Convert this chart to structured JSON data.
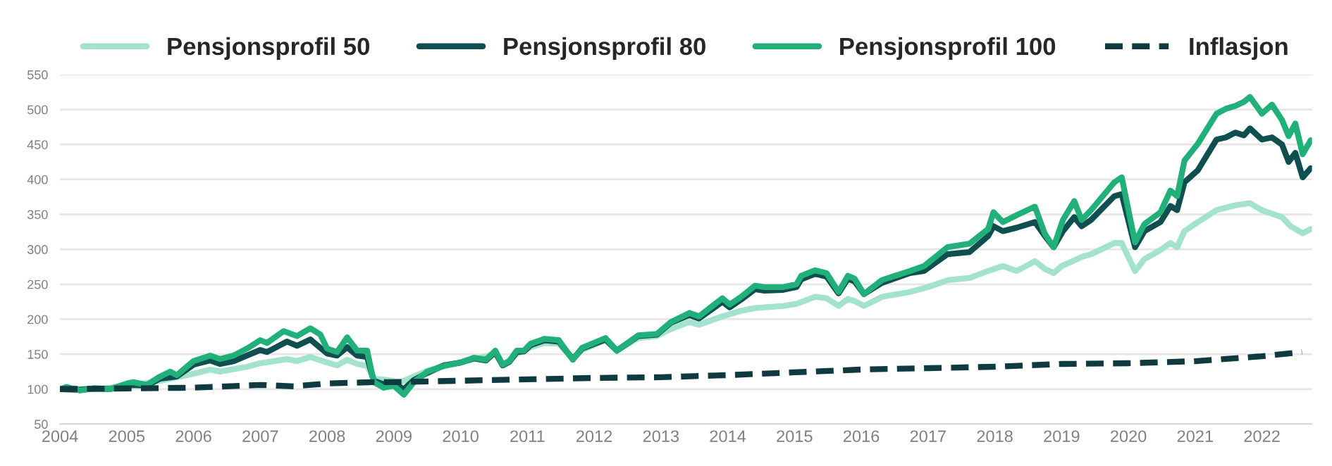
{
  "chart_data": {
    "type": "line",
    "xlim": [
      2004,
      2022.75
    ],
    "xticks": [
      2004,
      2005,
      2006,
      2007,
      2008,
      2009,
      2010,
      2011,
      2012,
      2013,
      2014,
      2015,
      2016,
      2017,
      2018,
      2019,
      2020,
      2021,
      2022
    ],
    "ylim": [
      50,
      550
    ],
    "yticks": [
      50,
      100,
      150,
      200,
      250,
      300,
      350,
      400,
      450,
      500,
      550
    ],
    "grid": "y",
    "legend": "top",
    "line_style": "solid",
    "marker": "none",
    "series": [
      {
        "name": "Pensjonsprofil 50",
        "color": "#a3e2cc",
        "x": [
          2004.0,
          2004.5,
          2005.0,
          2005.5,
          2006.0,
          2006.25,
          2006.4,
          2006.8,
          2007.0,
          2007.4,
          2007.55,
          2007.75,
          2008.0,
          2008.15,
          2008.3,
          2008.45,
          2008.6,
          2008.7,
          2008.9,
          2009.1,
          2009.3,
          2009.5,
          2009.75,
          2010.0,
          2010.2,
          2010.52,
          2010.63,
          2010.84,
          2011.05,
          2011.26,
          2011.47,
          2011.68,
          2011.82,
          2012.17,
          2012.34,
          2012.66,
          2012.94,
          2013.15,
          2013.43,
          2013.57,
          2013.92,
          2014.2,
          2014.41,
          2014.83,
          2015.03,
          2015.31,
          2015.48,
          2015.66,
          2015.8,
          2015.9,
          2016.04,
          2016.31,
          2016.73,
          2017.0,
          2017.3,
          2017.62,
          2017.9,
          2018.12,
          2018.33,
          2018.6,
          2018.75,
          2018.88,
          2019.0,
          2019.3,
          2019.44,
          2019.79,
          2019.9,
          2020.1,
          2020.24,
          2020.48,
          2020.63,
          2020.73,
          2020.84,
          2021.04,
          2021.32,
          2021.6,
          2021.82,
          2022.0,
          2022.3,
          2022.43,
          2022.61,
          2022.73
        ],
        "values": [
          100,
          100,
          104,
          112,
          122,
          128,
          125,
          132,
          137,
          143,
          140,
          146,
          138,
          134,
          142,
          136,
          133,
          115,
          113,
          110,
          118,
          126,
          134,
          138,
          143,
          150,
          134,
          150,
          160,
          166,
          165,
          143,
          156,
          170,
          155,
          173,
          176,
          186,
          196,
          192,
          204,
          212,
          216,
          219,
          222,
          232,
          230,
          219,
          229,
          226,
          219,
          232,
          239,
          246,
          256,
          259,
          269,
          276,
          269,
          283,
          272,
          266,
          276,
          289,
          293,
          309,
          309,
          269,
          286,
          299,
          309,
          303,
          326,
          339,
          356,
          363,
          366,
          356,
          346,
          333,
          323,
          329
        ]
      },
      {
        "name": "Pensjonsprofil 80",
        "color": "#0f4f4f",
        "x": [
          2004.0,
          2004.3,
          2004.5,
          2004.75,
          2005.0,
          2005.3,
          2005.5,
          2005.75,
          2006.0,
          2006.25,
          2006.4,
          2006.6,
          2006.8,
          2007.0,
          2007.1,
          2007.4,
          2007.55,
          2007.75,
          2008.0,
          2008.15,
          2008.3,
          2008.45,
          2008.6,
          2008.7,
          2008.85,
          2009.0,
          2009.15,
          2009.3,
          2009.5,
          2009.75,
          2010.0,
          2010.2,
          2010.38,
          2010.52,
          2010.63,
          2010.73,
          2010.84,
          2010.95,
          2011.05,
          2011.26,
          2011.47,
          2011.68,
          2011.82,
          2012.17,
          2012.34,
          2012.66,
          2012.94,
          2013.15,
          2013.43,
          2013.57,
          2013.92,
          2014.03,
          2014.2,
          2014.41,
          2014.55,
          2014.83,
          2015.03,
          2015.1,
          2015.31,
          2015.48,
          2015.66,
          2015.8,
          2015.9,
          2016.04,
          2016.31,
          2016.73,
          2016.94,
          2017.29,
          2017.62,
          2017.9,
          2017.98,
          2018.12,
          2018.33,
          2018.6,
          2018.75,
          2018.88,
          2019.02,
          2019.19,
          2019.3,
          2019.44,
          2019.79,
          2019.9,
          2020.1,
          2020.24,
          2020.48,
          2020.63,
          2020.73,
          2020.84,
          2021.04,
          2021.32,
          2021.46,
          2021.6,
          2021.73,
          2021.82,
          2022.0,
          2022.15,
          2022.3,
          2022.4,
          2022.5,
          2022.61,
          2022.73
        ],
        "values": [
          100,
          99,
          101,
          100,
          106,
          105,
          115,
          118,
          135,
          141,
          136,
          140,
          148,
          156,
          153,
          168,
          162,
          171,
          151,
          148,
          160,
          148,
          146,
          112,
          107,
          108,
          100,
          113,
          123,
          134,
          138,
          144,
          141,
          153,
          134,
          139,
          153,
          154,
          163,
          170,
          168,
          143,
          158,
          171,
          155,
          176,
          178,
          195,
          206,
          201,
          225,
          217,
          228,
          243,
          241,
          242,
          246,
          257,
          265,
          261,
          237,
          258,
          254,
          236,
          252,
          266,
          269,
          293,
          296,
          319,
          333,
          326,
          331,
          339,
          319,
          303,
          326,
          346,
          333,
          342,
          376,
          379,
          303,
          326,
          339,
          362,
          356,
          396,
          413,
          457,
          460,
          467,
          463,
          473,
          457,
          460,
          450,
          425,
          438,
          403,
          416
        ]
      },
      {
        "name": "Pensjonsprofil 100",
        "color": "#22b07a",
        "x": [
          2004.0,
          2004.1,
          2004.3,
          2004.5,
          2004.75,
          2005.0,
          2005.1,
          2005.3,
          2005.5,
          2005.65,
          2005.75,
          2006.0,
          2006.25,
          2006.4,
          2006.6,
          2006.8,
          2007.0,
          2007.1,
          2007.35,
          2007.55,
          2007.75,
          2007.9,
          2008.0,
          2008.15,
          2008.3,
          2008.45,
          2008.6,
          2008.7,
          2008.85,
          2009.0,
          2009.15,
          2009.3,
          2009.5,
          2009.75,
          2010.0,
          2010.2,
          2010.38,
          2010.52,
          2010.63,
          2010.73,
          2010.84,
          2010.95,
          2011.05,
          2011.26,
          2011.47,
          2011.68,
          2011.82,
          2012.17,
          2012.34,
          2012.66,
          2012.94,
          2013.15,
          2013.43,
          2013.57,
          2013.92,
          2014.03,
          2014.2,
          2014.41,
          2014.55,
          2014.83,
          2015.03,
          2015.1,
          2015.31,
          2015.48,
          2015.66,
          2015.8,
          2015.9,
          2016.04,
          2016.31,
          2016.73,
          2016.94,
          2017.29,
          2017.62,
          2017.9,
          2017.98,
          2018.12,
          2018.33,
          2018.6,
          2018.75,
          2018.88,
          2019.02,
          2019.19,
          2019.3,
          2019.44,
          2019.79,
          2019.9,
          2020.1,
          2020.24,
          2020.48,
          2020.63,
          2020.73,
          2020.84,
          2021.04,
          2021.32,
          2021.46,
          2021.6,
          2021.73,
          2021.82,
          2022.0,
          2022.15,
          2022.3,
          2022.4,
          2022.5,
          2022.61,
          2022.73
        ],
        "values": [
          100,
          103,
          98,
          101,
          100,
          108,
          110,
          106,
          118,
          125,
          120,
          140,
          148,
          143,
          148,
          158,
          170,
          166,
          183,
          176,
          187,
          178,
          158,
          153,
          174,
          155,
          155,
          110,
          102,
          105,
          92,
          110,
          125,
          133,
          138,
          145,
          142,
          155,
          135,
          140,
          155,
          155,
          165,
          172,
          170,
          142,
          159,
          173,
          155,
          177,
          179,
          196,
          209,
          204,
          230,
          221,
          232,
          248,
          246,
          246,
          250,
          262,
          270,
          266,
          239,
          262,
          258,
          236,
          256,
          269,
          276,
          303,
          308,
          329,
          353,
          339,
          349,
          361,
          322,
          303,
          342,
          369,
          342,
          356,
          396,
          403,
          310,
          336,
          353,
          384,
          376,
          427,
          451,
          494,
          501,
          505,
          511,
          518,
          494,
          507,
          485,
          462,
          480,
          436,
          456
        ]
      },
      {
        "name": "Inflasjon",
        "color": "#0e3a40",
        "line_style": "dashed",
        "x": [
          2004.0,
          2005.0,
          2006.0,
          2007.0,
          2007.5,
          2008.0,
          2008.7,
          2009.0,
          2010.0,
          2011.0,
          2012.0,
          2013.0,
          2014.0,
          2015.0,
          2016.0,
          2017.0,
          2018.0,
          2019.0,
          2020.0,
          2021.0,
          2022.0,
          2022.6
        ],
        "values": [
          100,
          101,
          102,
          106,
          104,
          108,
          110,
          110,
          112,
          114,
          116,
          117,
          120,
          124,
          128,
          130,
          132,
          136,
          137,
          140,
          147,
          153
        ]
      }
    ]
  }
}
